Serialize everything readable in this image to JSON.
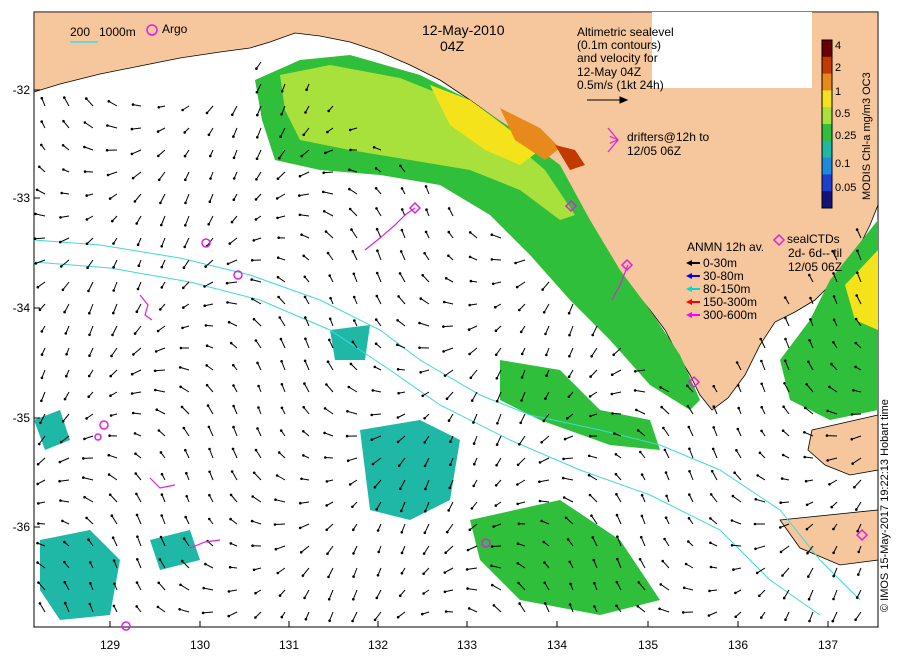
{
  "map": {
    "date": "12-May-2010",
    "time": "04Z",
    "altimetry_note": [
      "Altimetric sealevel",
      "(0.1m contours)",
      "and velocity for",
      "12-May 04Z",
      "0.5m/s (1kt 24h)"
    ],
    "drifters_note": [
      "drifters@12h to",
      "12/05 06Z"
    ],
    "isobath_legend": {
      "a": "200",
      "b": "1000m"
    },
    "argo_label": "Argo",
    "anmn_legend": {
      "title": "ANMN 12h av.",
      "rows": [
        {
          "label": "0-30m",
          "color": "#000000"
        },
        {
          "label": "30-80m",
          "color": "#0000ff"
        },
        {
          "label": "80-150m",
          "color": "#00d8d8"
        },
        {
          "label": "150-300m",
          "color": "#ff0000"
        },
        {
          "label": "300-600m",
          "color": "#ff00ff"
        }
      ]
    },
    "sealctd_legend": [
      "sealCTDs",
      "2d- 6d-- til",
      "12/05 06Z"
    ],
    "colorbar": {
      "title": "MODIS Chl-a mg/m3 OC3",
      "ticks": [
        "4",
        "2",
        "1",
        "0.5",
        "0.25",
        "0.1",
        "0.05"
      ],
      "colors": [
        "#6b0000",
        "#c23a00",
        "#e88a1b",
        "#f4e21b",
        "#a8e03c",
        "#2fbf3a",
        "#1fb8a6",
        "#1b8be0",
        "#1b3fd0",
        "#12127a"
      ]
    },
    "y_ticks": [
      "-32",
      "-33",
      "-34",
      "-35",
      "-36"
    ],
    "x_ticks": [
      "129",
      "130",
      "131",
      "132",
      "133",
      "134",
      "135",
      "136",
      "137"
    ],
    "credit": "© IMOS 15-May-2017 19:22:13 Hobart time",
    "colors": {
      "land": "#f6c79c",
      "argo": "#e020e0",
      "contour": "#40d8e0",
      "vector": "#000000"
    }
  }
}
